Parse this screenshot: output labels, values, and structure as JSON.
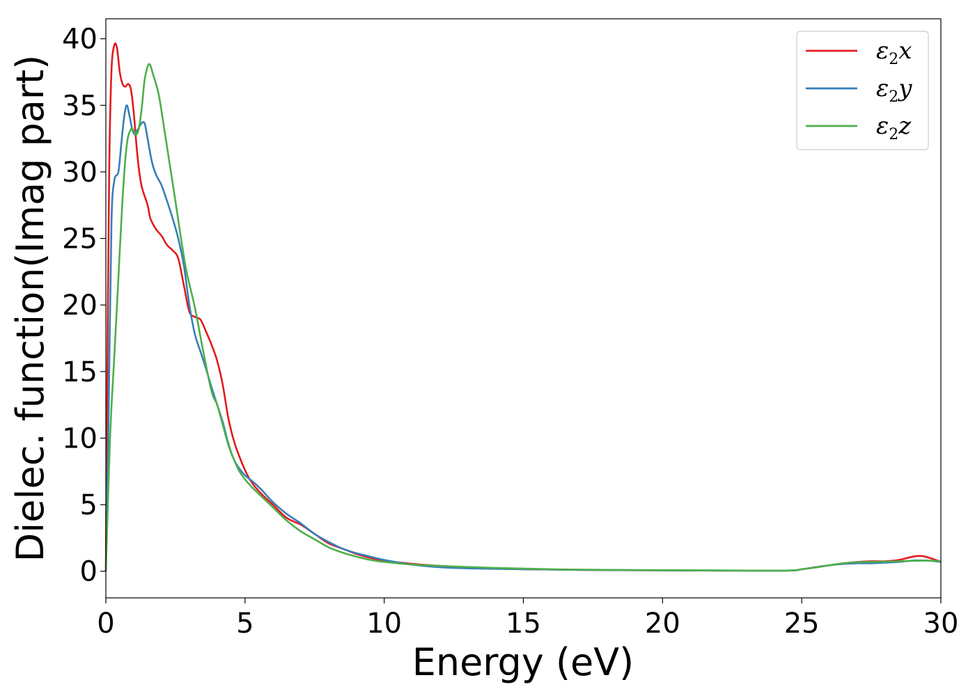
{
  "chart_data": {
    "type": "line",
    "xlabel": "Energy (eV)",
    "ylabel": "Dielec. function(Imag part)",
    "xlim": [
      0,
      30
    ],
    "ylim": [
      -2,
      41.5
    ],
    "xticks": [
      0,
      5,
      10,
      15,
      20,
      25,
      30
    ],
    "yticks": [
      0,
      5,
      10,
      15,
      20,
      25,
      30,
      35,
      40
    ],
    "grid": false,
    "legend_position": "top-right",
    "series": [
      {
        "name": "ε2x",
        "legend_base": "ε",
        "legend_sub": "2",
        "legend_suffix": "x",
        "color": "#e41a1c",
        "points": [
          [
            0,
            0
          ],
          [
            0.05,
            14
          ],
          [
            0.12,
            30
          ],
          [
            0.2,
            37.5
          ],
          [
            0.3,
            39.5
          ],
          [
            0.4,
            39.3
          ],
          [
            0.5,
            37.5
          ],
          [
            0.6,
            36.6
          ],
          [
            0.7,
            36.4
          ],
          [
            0.8,
            36.6
          ],
          [
            0.9,
            36.2
          ],
          [
            1.0,
            34.5
          ],
          [
            1.1,
            32
          ],
          [
            1.2,
            30
          ],
          [
            1.3,
            28.8
          ],
          [
            1.5,
            27.5
          ],
          [
            1.6,
            26.5
          ],
          [
            1.8,
            25.7
          ],
          [
            2.0,
            25.2
          ],
          [
            2.2,
            24.5
          ],
          [
            2.4,
            24.1
          ],
          [
            2.6,
            23.5
          ],
          [
            2.8,
            21.5
          ],
          [
            3.0,
            19.5
          ],
          [
            3.2,
            19.1
          ],
          [
            3.4,
            18.9
          ],
          [
            3.6,
            18
          ],
          [
            3.8,
            17
          ],
          [
            4.0,
            15.8
          ],
          [
            4.2,
            14
          ],
          [
            4.4,
            11.5
          ],
          [
            4.6,
            9.8
          ],
          [
            4.8,
            8.6
          ],
          [
            5.0,
            7.6
          ],
          [
            5.2,
            6.8
          ],
          [
            5.5,
            6.0
          ],
          [
            6.0,
            5.0
          ],
          [
            6.5,
            4.0
          ],
          [
            7.0,
            3.5
          ],
          [
            7.5,
            2.8
          ],
          [
            8.0,
            2.1
          ],
          [
            8.5,
            1.7
          ],
          [
            9.0,
            1.3
          ],
          [
            9.5,
            1.0
          ],
          [
            10,
            0.8
          ],
          [
            11,
            0.55
          ],
          [
            12,
            0.4
          ],
          [
            13,
            0.3
          ],
          [
            14,
            0.2
          ],
          [
            15,
            0.15
          ],
          [
            17,
            0.1
          ],
          [
            20,
            0.07
          ],
          [
            22,
            0.05
          ],
          [
            24.5,
            0.05
          ],
          [
            25,
            0.15
          ],
          [
            25.5,
            0.3
          ],
          [
            26,
            0.45
          ],
          [
            26.5,
            0.6
          ],
          [
            27,
            0.7
          ],
          [
            27.5,
            0.75
          ],
          [
            28,
            0.75
          ],
          [
            28.5,
            0.85
          ],
          [
            29.0,
            1.1
          ],
          [
            29.3,
            1.15
          ],
          [
            29.6,
            1.0
          ],
          [
            30,
            0.7
          ]
        ]
      },
      {
        "name": "ε2y",
        "legend_base": "ε",
        "legend_sub": "2",
        "legend_suffix": "y",
        "color": "#377eb8",
        "points": [
          [
            0,
            0
          ],
          [
            0.1,
            12
          ],
          [
            0.2,
            26
          ],
          [
            0.3,
            29.3
          ],
          [
            0.45,
            30
          ],
          [
            0.55,
            32
          ],
          [
            0.65,
            34
          ],
          [
            0.75,
            35
          ],
          [
            0.85,
            34.2
          ],
          [
            0.95,
            33.2
          ],
          [
            1.05,
            32.8
          ],
          [
            1.15,
            33.2
          ],
          [
            1.3,
            33.7
          ],
          [
            1.4,
            33.6
          ],
          [
            1.5,
            32.5
          ],
          [
            1.65,
            30.8
          ],
          [
            1.8,
            29.8
          ],
          [
            2.0,
            29
          ],
          [
            2.2,
            27.8
          ],
          [
            2.4,
            26.5
          ],
          [
            2.6,
            25
          ],
          [
            2.8,
            23
          ],
          [
            3.0,
            20
          ],
          [
            3.2,
            17.8
          ],
          [
            3.4,
            16.5
          ],
          [
            3.6,
            15.2
          ],
          [
            3.8,
            13.8
          ],
          [
            4.0,
            12.5
          ],
          [
            4.2,
            11.2
          ],
          [
            4.4,
            9.6
          ],
          [
            4.6,
            8.4
          ],
          [
            4.8,
            7.7
          ],
          [
            5.0,
            7.2
          ],
          [
            5.3,
            6.7
          ],
          [
            5.6,
            6.1
          ],
          [
            6.0,
            5.2
          ],
          [
            6.5,
            4.3
          ],
          [
            7.0,
            3.6
          ],
          [
            7.5,
            2.8
          ],
          [
            8.0,
            2.2
          ],
          [
            8.5,
            1.7
          ],
          [
            9.0,
            1.35
          ],
          [
            9.5,
            1.1
          ],
          [
            10,
            0.85
          ],
          [
            11,
            0.5
          ],
          [
            12,
            0.3
          ],
          [
            13,
            0.22
          ],
          [
            14,
            0.18
          ],
          [
            15,
            0.15
          ],
          [
            17,
            0.1
          ],
          [
            20,
            0.07
          ],
          [
            22,
            0.05
          ],
          [
            24.5,
            0.05
          ],
          [
            25,
            0.15
          ],
          [
            25.5,
            0.3
          ],
          [
            26,
            0.45
          ],
          [
            26.5,
            0.55
          ],
          [
            27,
            0.6
          ],
          [
            27.5,
            0.6
          ],
          [
            28,
            0.65
          ],
          [
            28.5,
            0.7
          ],
          [
            29,
            0.8
          ],
          [
            29.5,
            0.8
          ],
          [
            30,
            0.7
          ]
        ]
      },
      {
        "name": "ε2z",
        "legend_base": "ε",
        "legend_sub": "2",
        "legend_suffix": "z",
        "color": "#4daf4a",
        "points": [
          [
            0,
            0
          ],
          [
            0.15,
            10
          ],
          [
            0.3,
            16
          ],
          [
            0.45,
            22
          ],
          [
            0.6,
            28
          ],
          [
            0.75,
            32
          ],
          [
            0.9,
            33.2
          ],
          [
            1.0,
            33.1
          ],
          [
            1.1,
            32.8
          ],
          [
            1.2,
            33.4
          ],
          [
            1.3,
            35
          ],
          [
            1.4,
            37
          ],
          [
            1.55,
            38.1
          ],
          [
            1.7,
            37.3
          ],
          [
            1.9,
            35.8
          ],
          [
            2.1,
            33.2
          ],
          [
            2.3,
            30.5
          ],
          [
            2.5,
            27.8
          ],
          [
            2.7,
            25
          ],
          [
            2.9,
            22.5
          ],
          [
            3.2,
            19.8
          ],
          [
            3.5,
            16.5
          ],
          [
            3.8,
            13.5
          ],
          [
            4.0,
            12.5
          ],
          [
            4.2,
            11
          ],
          [
            4.4,
            9.5
          ],
          [
            4.6,
            8.4
          ],
          [
            4.8,
            7.5
          ],
          [
            5.0,
            6.9
          ],
          [
            5.3,
            6.2
          ],
          [
            5.6,
            5.6
          ],
          [
            6.0,
            4.8
          ],
          [
            6.5,
            3.8
          ],
          [
            7.0,
            3.0
          ],
          [
            7.5,
            2.4
          ],
          [
            8.0,
            1.8
          ],
          [
            8.5,
            1.4
          ],
          [
            9.0,
            1.1
          ],
          [
            9.5,
            0.85
          ],
          [
            10,
            0.7
          ],
          [
            11,
            0.5
          ],
          [
            12,
            0.4
          ],
          [
            13,
            0.32
          ],
          [
            14,
            0.25
          ],
          [
            15,
            0.2
          ],
          [
            17,
            0.12
          ],
          [
            20,
            0.08
          ],
          [
            22,
            0.06
          ],
          [
            24.5,
            0.05
          ],
          [
            25,
            0.15
          ],
          [
            25.5,
            0.28
          ],
          [
            26,
            0.45
          ],
          [
            26.5,
            0.6
          ],
          [
            27,
            0.68
          ],
          [
            27.5,
            0.7
          ],
          [
            28,
            0.72
          ],
          [
            28.5,
            0.75
          ],
          [
            29,
            0.78
          ],
          [
            29.5,
            0.8
          ],
          [
            30,
            0.75
          ]
        ]
      }
    ]
  }
}
